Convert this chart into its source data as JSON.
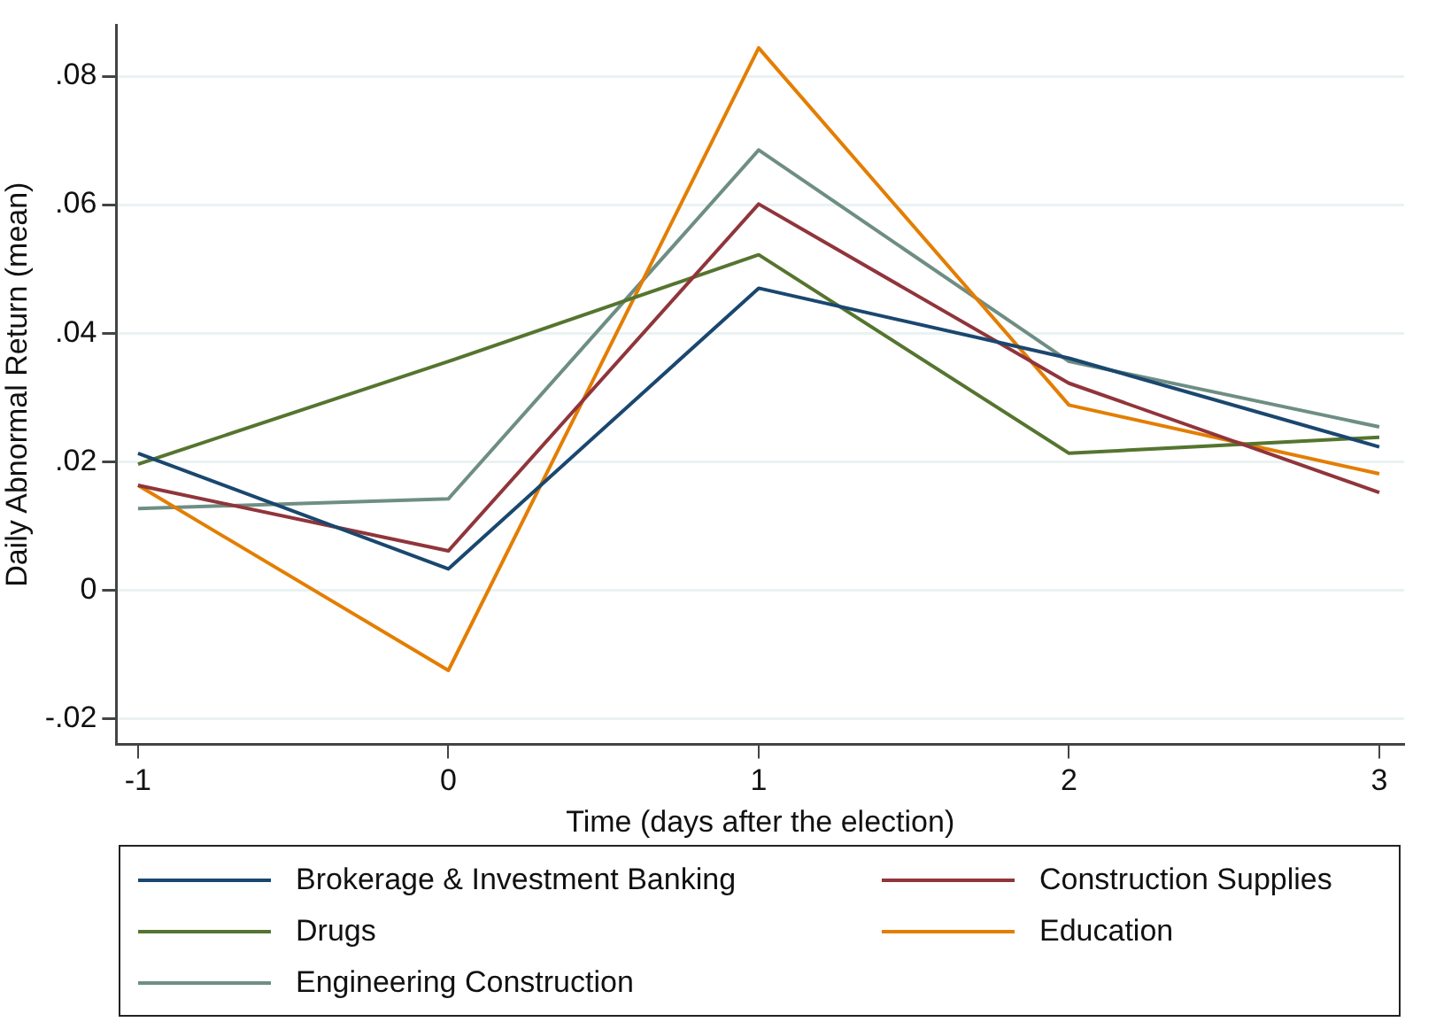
{
  "chart_data": {
    "type": "line",
    "xlabel": "Time (days after the election)",
    "ylabel": "Daily Abnormal Return (mean)",
    "x": [
      -1,
      0,
      1,
      2,
      3
    ],
    "series": [
      {
        "name": "Brokerage & Investment Banking",
        "color": "#1a476f",
        "values": [
          0.0213,
          0.0033,
          0.047,
          0.0361,
          0.0223
        ]
      },
      {
        "name": "Construction Supplies",
        "color": "#90353b",
        "values": [
          0.0163,
          0.0061,
          0.0601,
          0.0322,
          0.0152
        ]
      },
      {
        "name": "Drugs",
        "color": "#55752f",
        "values": [
          0.0196,
          0.0356,
          0.0522,
          0.0213,
          0.0238
        ]
      },
      {
        "name": "Education",
        "color": "#e37e00",
        "values": [
          0.0163,
          -0.0125,
          0.0844,
          0.0288,
          0.0181
        ]
      },
      {
        "name": "Engineering Construction",
        "color": "#6e8e84",
        "values": [
          0.0127,
          0.0142,
          0.0685,
          0.0356,
          0.0254
        ]
      }
    ],
    "xlim": [
      -1.07,
      3.08
    ],
    "xticks": [
      -1,
      0,
      1,
      2,
      3
    ],
    "ylim": [
      -0.024,
      0.088
    ],
    "yticks": [
      {
        "value": -0.02,
        "label": "-.02"
      },
      {
        "value": 0,
        "label": "0"
      },
      {
        "value": 0.02,
        "label": ".02"
      },
      {
        "value": 0.04,
        "label": ".04"
      },
      {
        "value": 0.06,
        "label": ".06"
      },
      {
        "value": 0.08,
        "label": ".08"
      }
    ],
    "grid": "y",
    "legend": "bottom",
    "marker": "none",
    "line_style": "solid"
  }
}
